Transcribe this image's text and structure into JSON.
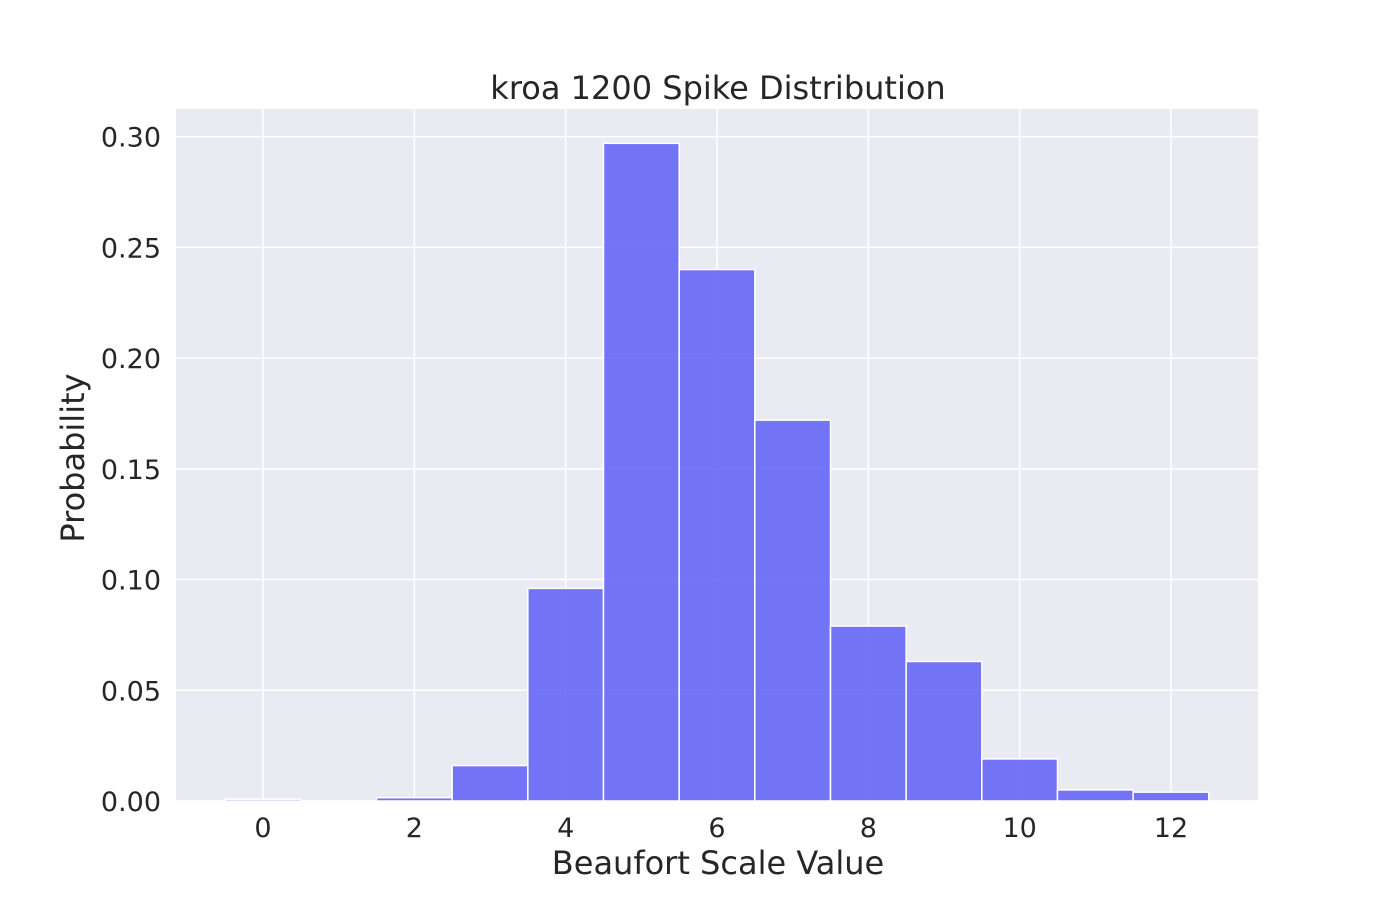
{
  "chart_data": {
    "type": "bar",
    "title": "kroa 1200 Spike Distribution",
    "xlabel": "Beaufort Scale Value",
    "ylabel": "Probability",
    "x": [
      0,
      1,
      2,
      3,
      4,
      5,
      6,
      7,
      8,
      9,
      10,
      11,
      12
    ],
    "values": [
      0.0008,
      0.0,
      0.0015,
      0.016,
      0.096,
      0.297,
      0.24,
      0.172,
      0.079,
      0.063,
      0.019,
      0.005,
      0.004
    ],
    "bin_width": 1,
    "xlim": [
      -1.15,
      13.15
    ],
    "ylim": [
      0,
      0.3125
    ],
    "xticks": [
      "0",
      "2",
      "4",
      "6",
      "8",
      "10",
      "12"
    ],
    "xtick_values": [
      0,
      2,
      4,
      6,
      8,
      10,
      12
    ],
    "yticks": [
      "0.00",
      "0.05",
      "0.10",
      "0.15",
      "0.20",
      "0.25",
      "0.30"
    ],
    "ytick_values": [
      0,
      0.05,
      0.1,
      0.15,
      0.2,
      0.25,
      0.3
    ],
    "grid": true,
    "bar_color": "#6666f5",
    "background_color": "#eaeaf2",
    "grid_color": "#ffffff"
  }
}
